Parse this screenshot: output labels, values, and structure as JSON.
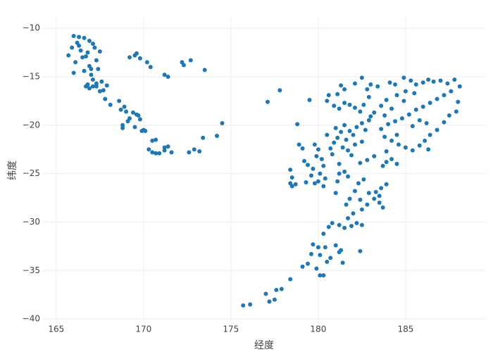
{
  "chart_data": {
    "type": "scatter",
    "xlabel": "经度",
    "ylabel": "纬度",
    "color": "#1f77b4",
    "grid": true,
    "xlim": [
      164.2,
      189.6
    ],
    "xticks": [
      165,
      170,
      175,
      180,
      185
    ],
    "ylim": [
      -40.5,
      -8.9
    ],
    "yticks": [
      {
        "value": -10,
        "label": "−10"
      },
      {
        "value": -15,
        "label": "−15"
      },
      {
        "value": -20,
        "label": "−20"
      },
      {
        "value": -25,
        "label": "−25"
      },
      {
        "value": -30,
        "label": "−30"
      },
      {
        "value": -35,
        "label": "−35"
      },
      {
        "value": -40,
        "label": "−40"
      }
    ],
    "x": [
      166.0,
      166.3,
      166.6,
      166.9,
      167.1,
      166.2,
      165.9,
      165.7,
      166.4,
      166.1,
      166.0,
      166.5,
      166.8,
      167.2,
      167.5,
      167.3,
      166.9,
      166.6,
      167.0,
      167.4,
      167.1,
      166.8,
      166.9,
      167.3,
      167.6,
      167.9,
      167.5,
      167.8,
      167.1,
      166.7,
      167.7,
      167.3,
      166.3,
      166.7,
      167.0,
      168.1,
      168.7,
      169.0,
      169.4,
      169.7,
      169.2,
      168.8,
      168.8,
      169.5,
      169.9,
      169.8,
      170.0,
      169.1,
      169.6,
      170.1,
      169.2,
      169.5,
      169.8,
      169.6,
      168.6,
      168.9,
      170.2,
      170.4,
      170.3,
      170.5,
      170.7,
      170.9,
      171.2,
      170.5,
      170.7,
      171.2,
      171.4,
      171.6,
      171.2,
      171.4,
      172.2,
      172.3,
      172.7,
      172.6,
      172.9,
      173.2,
      173.4,
      173.5,
      174.2,
      174.5,
      175.7,
      176.1,
      177.0,
      177.2,
      177.5,
      177.6,
      177.9,
      178.4,
      177.1,
      177.8,
      178.8,
      179.1,
      179.4,
      179.6,
      179.9,
      179.7,
      180.0,
      180.1,
      180.3,
      180.5,
      180.7,
      180.1,
      180.4,
      181.0,
      181.3,
      181.4,
      181.2,
      182.4,
      180.3,
      180.6,
      180.8,
      181.2,
      181.5,
      181.9,
      182.2,
      182.5,
      181.7,
      182.0,
      182.5,
      182.8,
      183.2,
      182.4,
      182.9,
      183.3,
      183.6,
      183.9,
      183.5,
      183.7,
      183.5,
      181.6,
      181.8,
      182.1,
      182.3,
      182.6,
      182.8,
      183.2,
      182.4,
      181.1,
      181.0,
      181.7,
      178.4,
      178.5,
      178.4,
      178.5,
      178.7,
      179.2,
      179.4,
      179.7,
      179.9,
      180.0,
      179.8,
      180.2,
      180.3,
      180.1,
      179.6,
      179.3,
      180.0,
      180.4,
      180.3,
      179.8,
      179.1,
      180.7,
      180.9,
      181.1,
      181.3,
      181.0,
      181.5,
      181.8,
      182.0,
      181.6,
      182.2,
      182.5,
      182.7,
      182.9,
      183.0,
      181.4,
      181.7,
      182.1,
      182.5,
      181.9,
      180.5,
      180.8,
      181.2,
      181.5,
      181.2,
      180.5,
      180.9,
      181.2,
      181.5,
      181.8,
      182.1,
      182.4,
      182.6,
      182.9,
      181.1,
      181.5,
      181.3,
      182.1,
      182.5,
      182.8,
      183.0,
      183.4,
      184.1,
      184.4,
      184.9,
      185.3,
      185.6,
      186.0,
      186.3,
      186.6,
      187.0,
      187.4,
      187.8,
      188.1,
      187.6,
      187.2,
      186.8,
      186.4,
      186.0,
      185.6,
      185.2,
      184.8,
      184.4,
      184.0,
      183.6,
      183.8,
      184.2,
      184.6,
      185.0,
      185.4,
      185.8,
      186.1,
      186.4,
      186.8,
      187.2,
      187.5,
      187.9,
      188.0,
      186.2,
      185.4,
      184.5,
      183.9,
      184.2,
      184.5,
      183.9,
      184.9,
      185.0,
      185.5,
      184.5,
      183.9,
      183.6,
      183.2,
      183.8,
      184.2,
      185.8,
      178.9,
      179.5,
      180.6,
      183.7,
      186.3
    ],
    "values": [
      -10.8,
      -10.9,
      -11.0,
      -11.3,
      -11.6,
      -11.5,
      -12.0,
      -12.8,
      -12.3,
      -13.5,
      -14.6,
      -13.0,
      -12.5,
      -12.0,
      -12.4,
      -13.3,
      -13.9,
      -14.4,
      -14.8,
      -14.2,
      -15.3,
      -15.8,
      -16.2,
      -15.7,
      -15.5,
      -15.9,
      -16.5,
      -17.3,
      -16.0,
      -16.0,
      -16.4,
      -16.0,
      -11.8,
      -12.9,
      -14.2,
      -17.9,
      -18.4,
      -18.6,
      -18.7,
      -19.0,
      -19.3,
      -20.0,
      -20.3,
      -20.2,
      -20.6,
      -19.4,
      -20.5,
      -19.6,
      -18.9,
      -20.6,
      -13.0,
      -12.8,
      -13.1,
      -12.6,
      -17.5,
      -18.1,
      -13.5,
      -14.0,
      -22.5,
      -22.8,
      -22.9,
      -22.9,
      -22.6,
      -21.6,
      -21.5,
      -22.3,
      -22.2,
      -22.8,
      -14.8,
      -15.0,
      -13.5,
      -13.8,
      -13.3,
      -22.8,
      -22.5,
      -22.7,
      -21.3,
      -14.3,
      -21.1,
      -19.8,
      -38.6,
      -38.5,
      -37.4,
      -38.2,
      -38.0,
      -37.0,
      -36.9,
      -35.9,
      -17.6,
      -16.4,
      -19.9,
      -34.6,
      -34.3,
      -33.3,
      -34.8,
      -32.3,
      -32.6,
      -35.5,
      -35.5,
      -34.1,
      -33.7,
      -33.4,
      -32.6,
      -32.4,
      -32.9,
      -34.2,
      -33.1,
      -33.0,
      -31.2,
      -30.5,
      -30.1,
      -30.3,
      -30.6,
      -30.4,
      -30.1,
      -30.3,
      -29.6,
      -29.1,
      -28.7,
      -28.2,
      -27.6,
      -27.7,
      -27.0,
      -26.9,
      -26.5,
      -26.1,
      -28.0,
      -28.5,
      -27.3,
      -28.2,
      -27.6,
      -26.8,
      -26.0,
      -25.6,
      -23.6,
      -23.2,
      -23.9,
      -25.8,
      -27.0,
      -25.3,
      -24.6,
      -25.4,
      -26.0,
      -26.3,
      -26.1,
      -23.7,
      -24.1,
      -24.5,
      -23.2,
      -22.5,
      -22.0,
      -23.5,
      -24.2,
      -25.0,
      -25.2,
      -25.9,
      -25.8,
      -25.5,
      -26.3,
      -26.0,
      -22.4,
      -22.4,
      -21.8,
      -21.3,
      -20.7,
      -20.3,
      -20.0,
      -20.6,
      -21.0,
      -21.5,
      -20.2,
      -19.8,
      -20.5,
      -19.5,
      -19.1,
      -22.3,
      -22.6,
      -22.0,
      -21.7,
      -23.1,
      -21.0,
      -23.0,
      -24.0,
      -24.8,
      -25.0,
      -17.5,
      -18.0,
      -18.3,
      -17.7,
      -17.9,
      -18.2,
      -18.6,
      -17.9,
      -17.1,
      -16.8,
      -16.3,
      -15.9,
      -15.7,
      -15.1,
      -16.3,
      -15.8,
      -16.0,
      -15.6,
      -15.8,
      -15.1,
      -15.4,
      -15.8,
      -15.6,
      -15.3,
      -15.5,
      -15.4,
      -15.7,
      -15.3,
      -16.0,
      -16.5,
      -16.9,
      -17.3,
      -17.7,
      -18.1,
      -18.4,
      -18.9,
      -19.3,
      -19.6,
      -19.9,
      -20.4,
      -21.2,
      -21.6,
      -22.0,
      -22.3,
      -22.6,
      -22.1,
      -21.6,
      -21.0,
      -20.5,
      -19.7,
      -19.0,
      -18.6,
      -17.6,
      -19.8,
      -20.1,
      -21.0,
      -22.7,
      -23.5,
      -24.0,
      -23.8,
      -17.5,
      -16.5,
      -16.7,
      -16.9,
      -17.4,
      -18.0,
      -18.7,
      -19.0,
      -18.3,
      -19.5,
      -22.0,
      -17.4,
      -16.9,
      -24.2,
      -22.5
    ]
  }
}
